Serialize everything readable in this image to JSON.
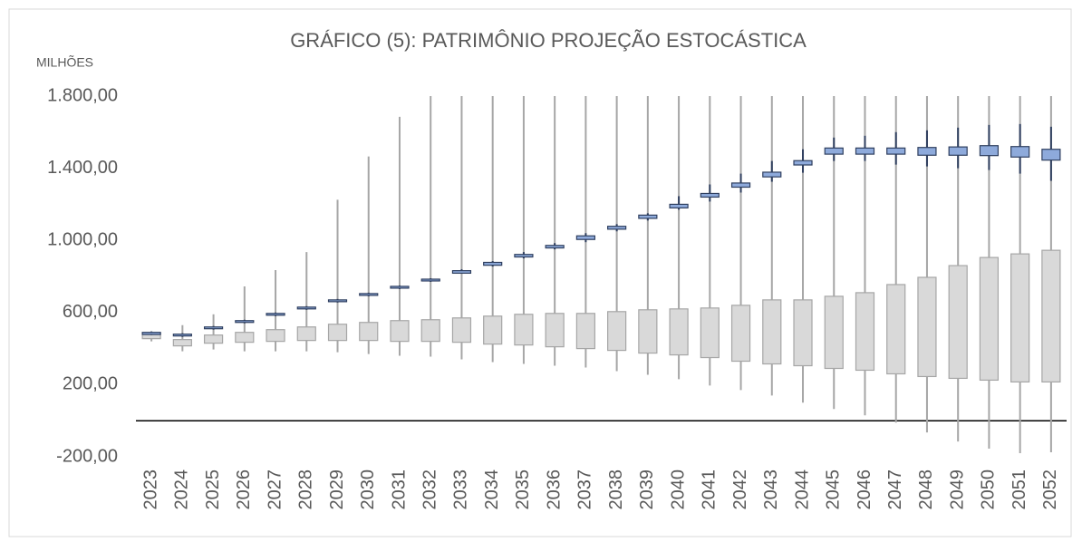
{
  "chart_data": {
    "type": "box",
    "title": "GRÁFICO (5): PATRIMÔNIO PROJEÇÃO ESTOCÁSTICA",
    "y_label": "MILHÕES",
    "categories": [
      "2023",
      "2024",
      "2025",
      "2026",
      "2027",
      "2028",
      "2029",
      "2030",
      "2031",
      "2032",
      "2033",
      "2034",
      "2035",
      "2036",
      "2037",
      "2038",
      "2039",
      "2040",
      "2041",
      "2042",
      "2043",
      "2044",
      "2045",
      "2046",
      "2047",
      "2048",
      "2049",
      "2050",
      "2051",
      "2052"
    ],
    "ylim": [
      -200,
      1800
    ],
    "yticks": [
      {
        "value": 1800,
        "label": "1.800,00"
      },
      {
        "value": 1400,
        "label": "1.400,00"
      },
      {
        "value": 1000,
        "label": "1.000,00"
      },
      {
        "value": 600,
        "label": "600,00"
      },
      {
        "value": 200,
        "label": "200,00"
      },
      {
        "value": -200,
        "label": "-200,00"
      }
    ],
    "series": [
      {
        "color": "#d9d9d9",
        "stroke": "#a6a6a6",
        "min": [
          440,
          385,
          395,
          385,
          385,
          385,
          380,
          370,
          360,
          355,
          340,
          325,
          315,
          305,
          295,
          275,
          255,
          230,
          195,
          170,
          140,
          100,
          65,
          30,
          -10,
          -65,
          -115,
          -155,
          -180,
          -175
        ],
        "q1": [
          455,
          415,
          430,
          435,
          440,
          445,
          445,
          445,
          440,
          440,
          435,
          425,
          420,
          410,
          400,
          390,
          375,
          365,
          350,
          330,
          315,
          305,
          290,
          280,
          260,
          245,
          235,
          225,
          215,
          215
        ],
        "q3": [
          485,
          450,
          475,
          490,
          505,
          520,
          535,
          545,
          555,
          560,
          570,
          580,
          590,
          595,
          595,
          605,
          615,
          620,
          625,
          640,
          670,
          670,
          690,
          710,
          755,
          795,
          860,
          905,
          925,
          945
        ],
        "max": [
          495,
          530,
          590,
          745,
          835,
          935,
          1225,
          1465,
          1685,
          1800,
          1800,
          1800,
          1800,
          1800,
          1800,
          1800,
          1800,
          1800,
          1800,
          1800,
          1800,
          1800,
          1800,
          1800,
          1800,
          1800,
          1800,
          1800,
          1800,
          1800
        ]
      },
      {
        "color": "#8eaadb",
        "stroke": "#2f3f5f",
        "min": [
          475,
          465,
          505,
          540,
          580,
          615,
          655,
          690,
          730,
          770,
          815,
          855,
          900,
          950,
          990,
          1050,
          1110,
          1170,
          1215,
          1265,
          1325,
          1375,
          1440,
          1440,
          1420,
          1410,
          1400,
          1390,
          1370,
          1330
        ],
        "q1": [
          478,
          470,
          510,
          545,
          585,
          620,
          660,
          695,
          735,
          775,
          818,
          862,
          908,
          958,
          1005,
          1062,
          1122,
          1180,
          1240,
          1295,
          1352,
          1418,
          1478,
          1478,
          1478,
          1472,
          1472,
          1470,
          1462,
          1445
        ],
        "q3": [
          490,
          480,
          520,
          555,
          595,
          630,
          670,
          705,
          745,
          785,
          832,
          878,
          922,
          972,
          1025,
          1078,
          1140,
          1200,
          1260,
          1318,
          1378,
          1442,
          1512,
          1512,
          1512,
          1515,
          1518,
          1525,
          1520,
          1505
        ],
        "max": [
          495,
          485,
          525,
          560,
          600,
          635,
          675,
          710,
          750,
          790,
          840,
          885,
          935,
          985,
          1040,
          1090,
          1150,
          1245,
          1310,
          1370,
          1440,
          1505,
          1570,
          1580,
          1600,
          1610,
          1625,
          1640,
          1645,
          1630
        ]
      }
    ]
  }
}
